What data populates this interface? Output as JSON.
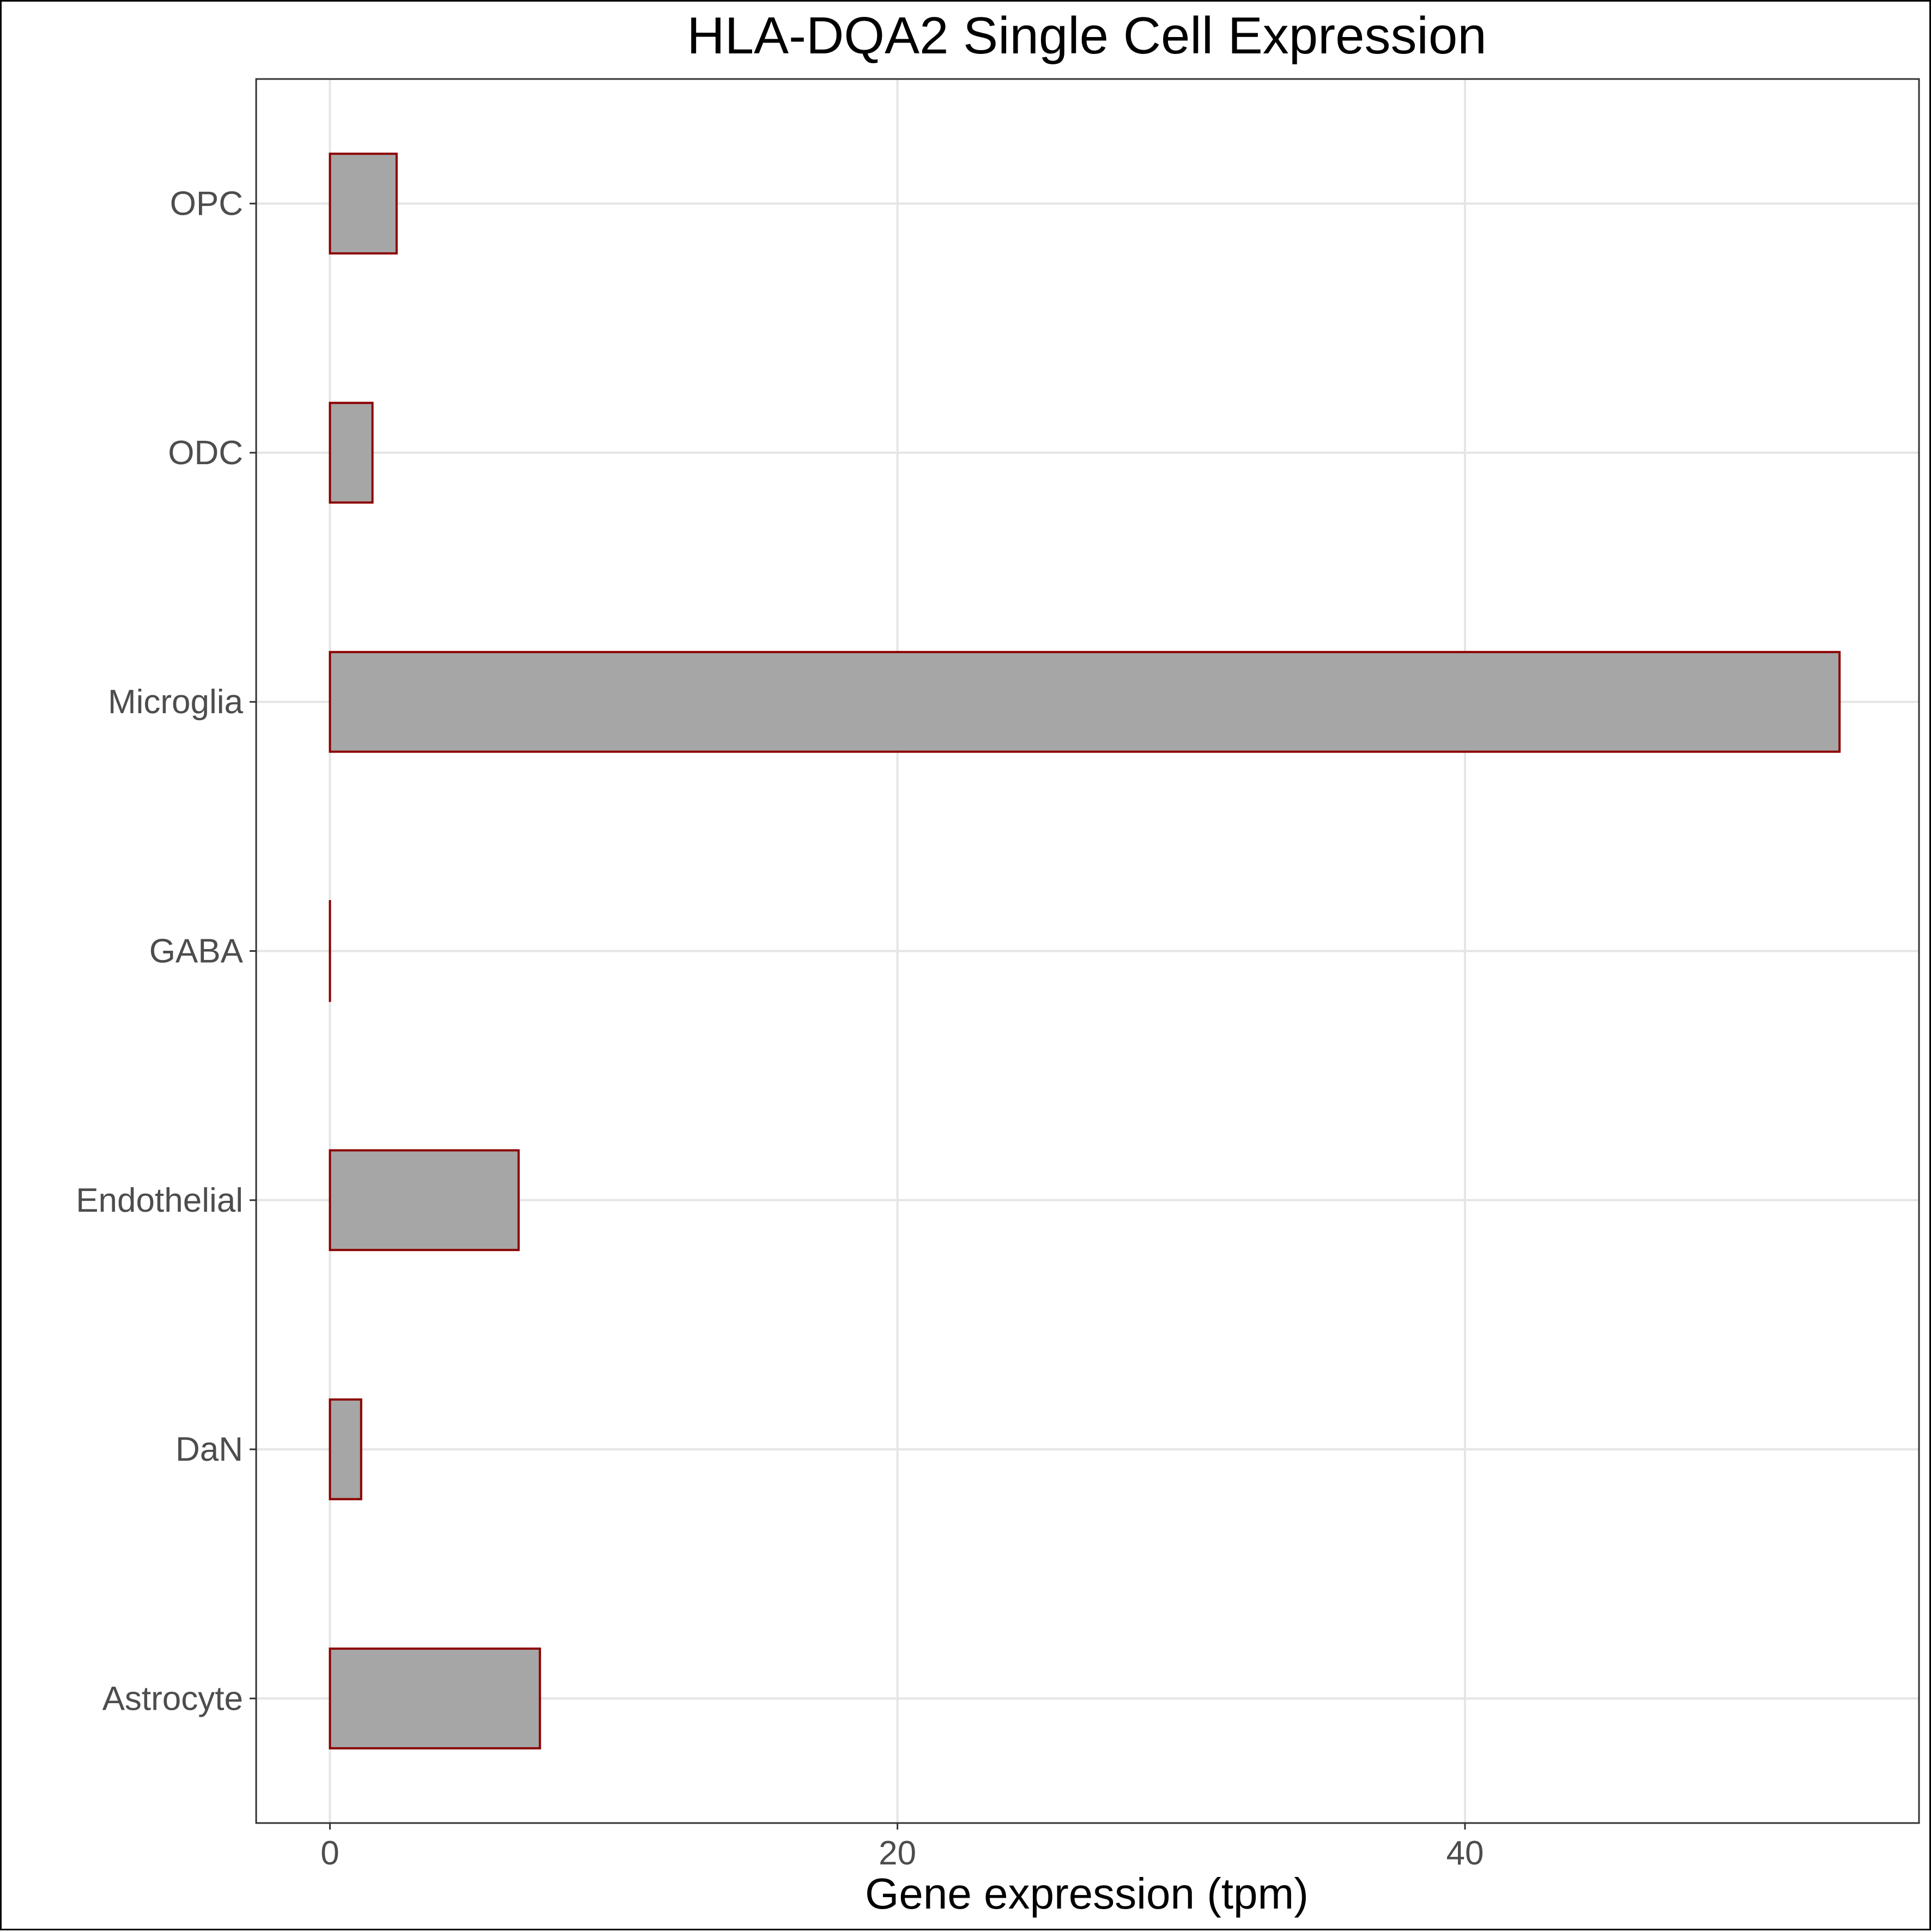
{
  "chart_data": {
    "type": "bar",
    "orientation": "horizontal",
    "title": "HLA-DQA2 Single Cell Expression",
    "xlabel": "Gene expression (tpm)",
    "ylabel": "",
    "categories": [
      "Astrocyte",
      "DaN",
      "Endothelial",
      "GABA",
      "Microglia",
      "ODC",
      "OPC"
    ],
    "values": [
      7.4,
      1.1,
      6.65,
      0.0,
      53.2,
      1.5,
      2.35
    ],
    "xlim": [
      -2.6,
      56.0
    ],
    "xticks": [
      0,
      20,
      40
    ],
    "xtick_labels": [
      "0",
      "20",
      "40"
    ],
    "grid": true,
    "colors": {
      "bar_fill": "#a6a6a6",
      "bar_outline": "#8b0000",
      "grid": "#e5e5e5",
      "panel_border": "#333333"
    }
  }
}
